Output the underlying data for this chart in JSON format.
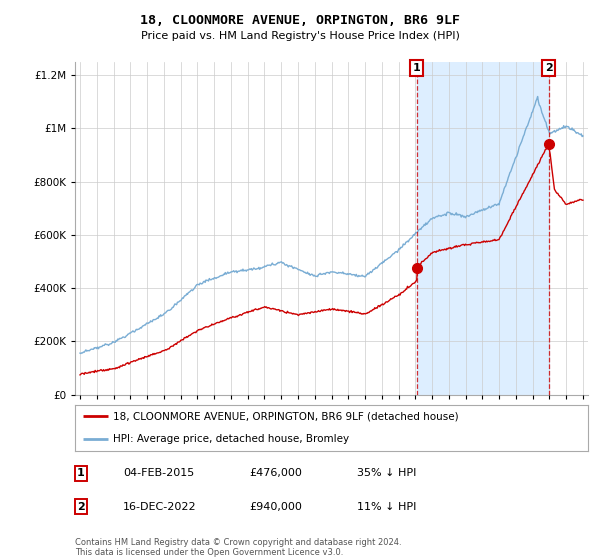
{
  "title": "18, CLOONMORE AVENUE, ORPINGTON, BR6 9LF",
  "subtitle": "Price paid vs. HM Land Registry's House Price Index (HPI)",
  "red_label": "18, CLOONMORE AVENUE, ORPINGTON, BR6 9LF (detached house)",
  "blue_label": "HPI: Average price, detached house, Bromley",
  "footer": "Contains HM Land Registry data © Crown copyright and database right 2024.\nThis data is licensed under the Open Government Licence v3.0.",
  "annotation1": {
    "num": "1",
    "date": "04-FEB-2015",
    "price": "£476,000",
    "hpi": "35% ↓ HPI"
  },
  "annotation2": {
    "num": "2",
    "date": "16-DEC-2022",
    "price": "£940,000",
    "hpi": "11% ↓ HPI"
  },
  "ylim": [
    0,
    1250000
  ],
  "yticks": [
    0,
    200000,
    400000,
    600000,
    800000,
    1000000,
    1200000
  ],
  "xlim": [
    1994.7,
    2025.3
  ],
  "red_color": "#cc0000",
  "blue_color": "#7aadd4",
  "shade_color": "#ddeeff",
  "point1_x": 2015.09,
  "point1_y": 476000,
  "point2_x": 2022.96,
  "point2_y": 940000,
  "background_color": "#ffffff",
  "grid_color": "#cccccc"
}
